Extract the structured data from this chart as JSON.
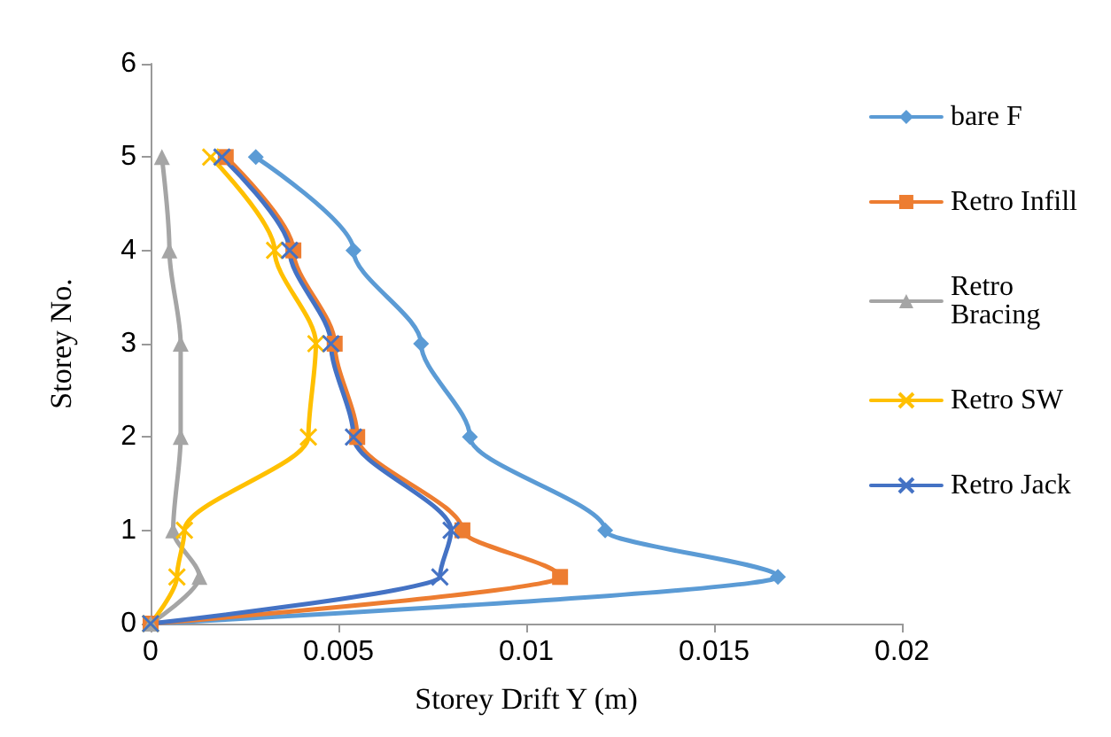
{
  "chart_data": {
    "type": "line",
    "xlabel": "Storey Drift Y (m)",
    "ylabel": "Storey No.",
    "xlim": [
      0,
      0.02
    ],
    "xticks": [
      0,
      0.005,
      0.01,
      0.015,
      0.02
    ],
    "ylim": [
      0,
      6
    ],
    "yticks": [
      0,
      1,
      2,
      3,
      4,
      5,
      6
    ],
    "grid": false,
    "legend": "right",
    "line_style": "solid",
    "series": [
      {
        "name": "bare F",
        "color": "#5b9bd5",
        "marker": "diamond",
        "x": [
          0,
          0.0167,
          0.0121,
          0.0085,
          0.0072,
          0.0054,
          0.0028
        ],
        "values": [
          0,
          0.5,
          1,
          2,
          3,
          4,
          5
        ]
      },
      {
        "name": "Retro Infill",
        "color": "#ed7d31",
        "marker": "square",
        "x": [
          0,
          0.0109,
          0.0083,
          0.0055,
          0.0049,
          0.0038,
          0.002
        ],
        "values": [
          0,
          0.5,
          1,
          2,
          3,
          4,
          5
        ]
      },
      {
        "name": "Retro Bracing",
        "color": "#a5a5a5",
        "marker": "triangle",
        "x": [
          0,
          0.0013,
          0.0006,
          0.0008,
          0.0008,
          0.0005,
          0.0003
        ],
        "values": [
          0,
          0.5,
          1,
          2,
          3,
          4,
          5
        ]
      },
      {
        "name": "Retro SW",
        "color": "#ffc000",
        "marker": "cross",
        "x": [
          0,
          0.0007,
          0.0009,
          0.0042,
          0.0044,
          0.0033,
          0.0016
        ],
        "values": [
          0,
          0.5,
          1,
          2,
          3,
          4,
          5
        ]
      },
      {
        "name": "Retro Jack",
        "color": "#4472c4",
        "marker": "cross",
        "x": [
          0,
          0.0077,
          0.008,
          0.0054,
          0.0048,
          0.0037,
          0.0019
        ],
        "values": [
          0,
          0.5,
          1,
          2,
          3,
          4,
          5
        ]
      }
    ]
  }
}
